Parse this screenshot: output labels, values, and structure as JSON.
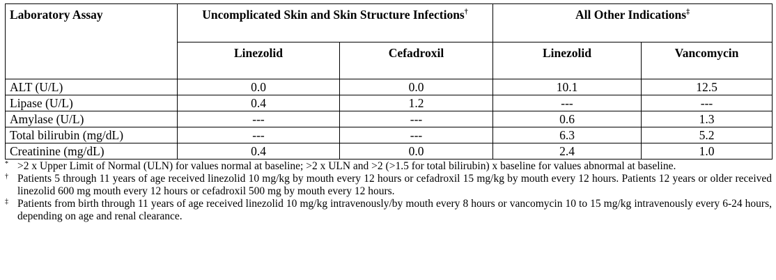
{
  "table": {
    "header": {
      "assay": "Laboratory Assay",
      "group1": "Uncomplicated Skin and Skin Structure Infections",
      "group1_mark": "†",
      "group2": "All Other Indications",
      "group2_mark": "‡",
      "columns": [
        "Linezolid",
        "Cefadroxil",
        "Linezolid",
        "Vancomycin"
      ]
    },
    "rows": [
      [
        "ALT (U/L)",
        "0.0",
        "0.0",
        "10.1",
        "12.5"
      ],
      [
        "Lipase (U/L)",
        "0.4",
        "1.2",
        "---",
        "---"
      ],
      [
        "Amylase (U/L)",
        "---",
        "---",
        "0.6",
        "1.3"
      ],
      [
        "Total bilirubin (mg/dL)",
        "---",
        "---",
        "6.3",
        "5.2"
      ],
      [
        "Creatinine (mg/dL)",
        "0.4",
        "0.0",
        "2.4",
        "1.0"
      ]
    ]
  },
  "footnotes": [
    {
      "mark": "*",
      "text": ">2 x Upper Limit of Normal (ULN) for values normal at baseline; >2 x ULN and >2 (>1.5 for total bilirubin) x baseline for values abnormal at baseline."
    },
    {
      "mark": "†",
      "text": "Patients 5 through 11 years of age received linezolid 10 mg/kg by mouth every 12 hours or cefadroxil 15 mg/kg by mouth every 12 hours. Patients 12 years or older received linezolid 600 mg mouth every 12 hours or cefadroxil 500 mg by mouth every 12 hours."
    },
    {
      "mark": "‡",
      "text": "Patients from birth through 11 years of age received linezolid 10 mg/kg intravenously/by mouth every 8 hours or vancomycin 10 to 15 mg/kg intravenously every 6-24 hours, depending on age and renal clearance."
    }
  ]
}
